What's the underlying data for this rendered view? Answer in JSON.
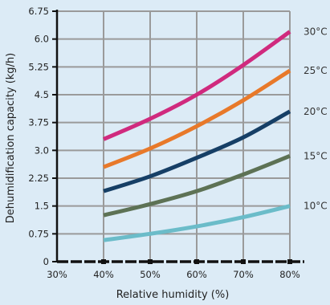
{
  "chart_data": {
    "type": "line",
    "title": "",
    "xlabel": "Relative humidity (%)",
    "ylabel": "Dehumidification capacity (kg/h)",
    "xlim": [
      30,
      80
    ],
    "ylim": [
      0,
      6.75
    ],
    "x_ticks": [
      "30%",
      "40%",
      "50%",
      "60%",
      "70%",
      "80%"
    ],
    "y_ticks": [
      "0",
      "0.75",
      "1.5",
      "2.25",
      "3.0",
      "3.75",
      "4.5",
      "5.25",
      "6.0",
      "6.75"
    ],
    "grid": true,
    "legend": "labels at right end of lines",
    "x": [
      40,
      50,
      60,
      70,
      80
    ],
    "series": [
      {
        "name": "10°C",
        "color": "#6bbcc9",
        "values": [
          0.58,
          0.75,
          0.95,
          1.2,
          1.5
        ]
      },
      {
        "name": "15°C",
        "color": "#5d7255",
        "values": [
          1.25,
          1.55,
          1.9,
          2.35,
          2.85
        ]
      },
      {
        "name": "20°C",
        "color": "#163f66",
        "values": [
          1.9,
          2.3,
          2.8,
          3.35,
          4.05
        ]
      },
      {
        "name": "25°C",
        "color": "#e8792a",
        "values": [
          2.55,
          3.05,
          3.65,
          4.35,
          5.15
        ]
      },
      {
        "name": "30°C",
        "color": "#d02a7e",
        "values": [
          3.3,
          3.85,
          4.5,
          5.3,
          6.2
        ]
      }
    ]
  }
}
